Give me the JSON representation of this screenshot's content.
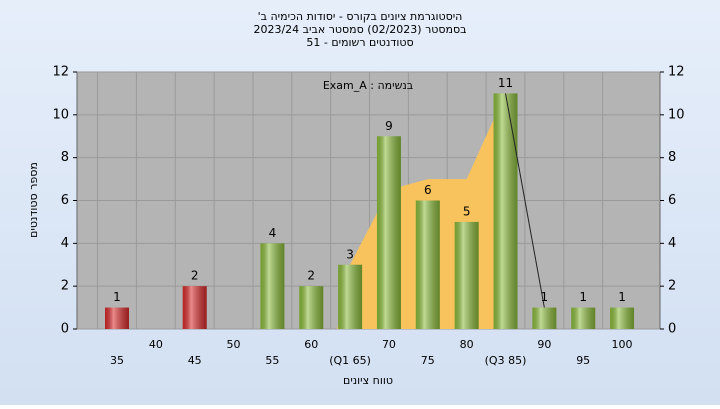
{
  "chart_data": {
    "type": "bar",
    "title": [
      "היסטוגרמת ציונים בקורס - יסודות הכימיה ב'",
      "בסמסטר  (02/2023)  סמסטר אביב 2023/24",
      "סטודנטים רשומים - 51"
    ],
    "annotation": "בנשימה : Exam_A",
    "y_label": "מספר סטודנטים",
    "x_label": "טווח ציונים",
    "categories": [
      "35",
      "40",
      "45",
      "50",
      "55",
      "60",
      "(Q1 65)",
      "70",
      "75",
      "80",
      "(Q3 85)",
      "90",
      "95",
      "100"
    ],
    "values": [
      1,
      0,
      2,
      0,
      4,
      2,
      3,
      9,
      6,
      5,
      11,
      1,
      1,
      1
    ],
    "colors": [
      "#d92b2b",
      "#d92b2b",
      "#d92b2b",
      "#d92b2b",
      "#8cbc3c",
      "#8cbc3c",
      "#8cbc3c",
      "#8cbc3c",
      "#8cbc3c",
      "#8cbc3c",
      "#8cbc3c",
      "#8cbc3c",
      "#8cbc3c",
      "#8cbc3c"
    ],
    "area": {
      "color": "#f8c35c",
      "values": [
        null,
        null,
        null,
        null,
        null,
        null,
        3,
        6.5,
        7,
        7,
        11,
        null,
        null,
        null
      ]
    },
    "line": {
      "color": "#222222",
      "values": [
        null,
        null,
        null,
        null,
        null,
        null,
        null,
        null,
        null,
        null,
        11,
        1,
        null,
        null
      ]
    },
    "ylim": [
      0,
      12
    ],
    "yticks": [
      0,
      2,
      4,
      6,
      8,
      10,
      12
    ],
    "grid": true
  }
}
